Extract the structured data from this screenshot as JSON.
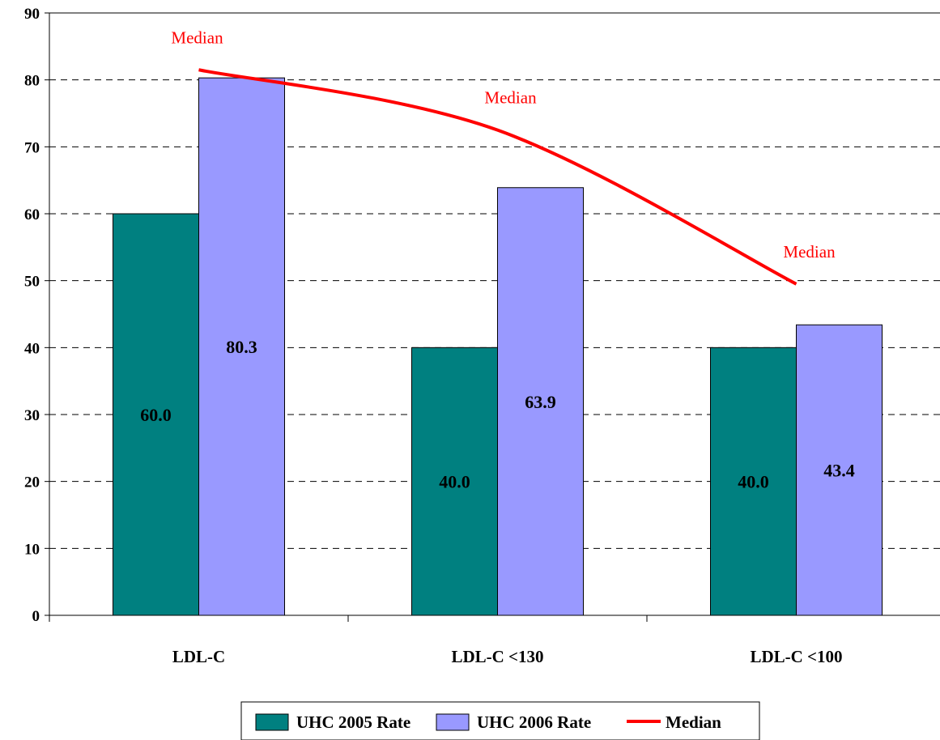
{
  "chart_data": {
    "type": "bar",
    "categories": [
      "LDL-C",
      "LDL-C <130",
      "LDL-C <100"
    ],
    "series": [
      {
        "name": "UHC 2005 Rate",
        "type": "bar",
        "color": "#008080",
        "values": [
          60.0,
          40.0,
          40.0
        ],
        "labels": [
          "60.0",
          "40.0",
          "40.0"
        ]
      },
      {
        "name": "UHC 2006 Rate",
        "type": "bar",
        "color": "#9999ff",
        "values": [
          80.3,
          63.9,
          43.4
        ],
        "labels": [
          "80.3",
          "63.9",
          "43.4"
        ]
      },
      {
        "name": "Median",
        "type": "line",
        "color": "#ff0000",
        "values": [
          81.5,
          72.5,
          49.5
        ]
      }
    ],
    "annotations": [
      "Median",
      "Median",
      "Median"
    ],
    "ylim": [
      0,
      90
    ],
    "yticks": [
      "0",
      "10",
      "20",
      "30",
      "40",
      "50",
      "60",
      "70",
      "80",
      "90"
    ],
    "grid": "dashed horizontal",
    "legend_placement": "bottom-center",
    "title": "",
    "xlabel": "",
    "ylabel": ""
  }
}
